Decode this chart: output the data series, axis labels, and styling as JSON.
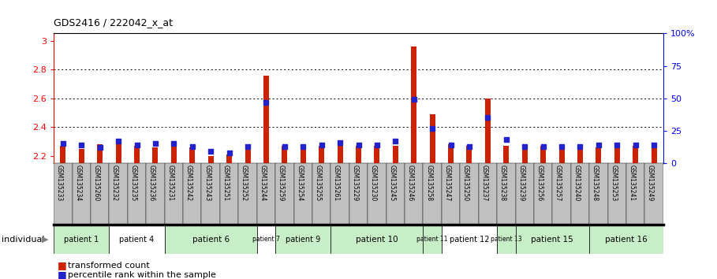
{
  "title": "GDS2416 / 222042_x_at",
  "samples": [
    "GSM135233",
    "GSM135234",
    "GSM135260",
    "GSM135232",
    "GSM135235",
    "GSM135236",
    "GSM135231",
    "GSM135242",
    "GSM135243",
    "GSM135251",
    "GSM135252",
    "GSM135244",
    "GSM135259",
    "GSM135254",
    "GSM135255",
    "GSM135261",
    "GSM135229",
    "GSM135230",
    "GSM135245",
    "GSM135246",
    "GSM135258",
    "GSM135247",
    "GSM135250",
    "GSM135237",
    "GSM135238",
    "GSM135239",
    "GSM135256",
    "GSM135257",
    "GSM135240",
    "GSM135248",
    "GSM135253",
    "GSM135241",
    "GSM135249"
  ],
  "red_values": [
    2.27,
    2.25,
    2.28,
    2.3,
    2.27,
    2.26,
    2.28,
    2.26,
    2.2,
    2.21,
    2.28,
    2.76,
    2.27,
    2.26,
    2.27,
    2.27,
    2.27,
    2.27,
    2.27,
    2.96,
    2.49,
    2.28,
    2.27,
    2.6,
    2.27,
    2.26,
    2.27,
    2.27,
    2.26,
    2.26,
    2.27,
    2.27,
    2.26
  ],
  "blue_values": [
    15,
    14,
    12,
    17,
    14,
    15,
    15,
    13,
    9,
    8,
    13,
    47,
    13,
    13,
    14,
    16,
    14,
    14,
    17,
    49,
    27,
    14,
    13,
    35,
    18,
    13,
    13,
    13,
    13,
    14,
    14,
    14,
    14
  ],
  "patients": [
    {
      "label": "patient 1",
      "start": 0,
      "end": 2,
      "color": "#c8eec8"
    },
    {
      "label": "patient 4",
      "start": 3,
      "end": 5,
      "color": "#ffffff"
    },
    {
      "label": "patient 6",
      "start": 6,
      "end": 10,
      "color": "#c8eec8"
    },
    {
      "label": "patient 7",
      "start": 11,
      "end": 11,
      "color": "#ffffff"
    },
    {
      "label": "patient 9",
      "start": 12,
      "end": 14,
      "color": "#c8eec8"
    },
    {
      "label": "patient 10",
      "start": 15,
      "end": 19,
      "color": "#c8eec8"
    },
    {
      "label": "patient 11",
      "start": 20,
      "end": 20,
      "color": "#c8eec8"
    },
    {
      "label": "patient 12",
      "start": 21,
      "end": 23,
      "color": "#ffffff"
    },
    {
      "label": "patient 13",
      "start": 24,
      "end": 24,
      "color": "#c8eec8"
    },
    {
      "label": "patient 15",
      "start": 25,
      "end": 28,
      "color": "#c8eec8"
    },
    {
      "label": "patient 16",
      "start": 29,
      "end": 32,
      "color": "#c8eec8"
    }
  ],
  "ylim_left": [
    2.15,
    3.05
  ],
  "ylim_right": [
    0,
    100
  ],
  "yticks_left": [
    2.2,
    2.4,
    2.6,
    2.8,
    3.0
  ],
  "ytick_labels_left": [
    "2.2",
    "2.4",
    "2.6",
    "2.8",
    "3"
  ],
  "yticks_right": [
    0,
    25,
    50,
    75,
    100
  ],
  "ytick_labels_right": [
    "0",
    "25",
    "50",
    "75",
    "100%"
  ],
  "bar_color": "#cc2200",
  "dot_color": "#2222cc",
  "background_color": "#ffffff",
  "legend_red": "transformed count",
  "legend_blue": "percentile rank within the sample",
  "bar_width": 0.3,
  "dot_size": 18,
  "sample_bg": "#c0c0c0"
}
